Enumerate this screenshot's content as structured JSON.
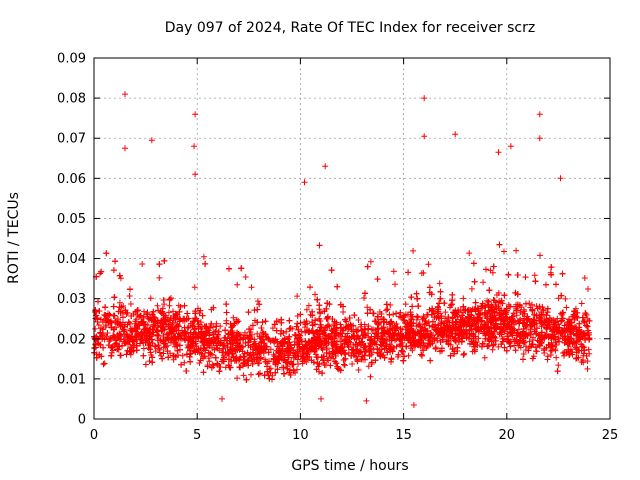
{
  "chart_data": {
    "type": "scatter",
    "title": "Day 097 of 2024, Rate Of TEC Index for receiver scrz",
    "xlabel": "GPS time / hours",
    "ylabel": "ROTI / TECUs",
    "xlim": [
      0,
      25
    ],
    "ylim": [
      0,
      0.09
    ],
    "xticks": [
      0,
      5,
      10,
      15,
      20,
      25
    ],
    "xtick_labels": [
      "0",
      "5",
      "10",
      "15",
      "20",
      "25"
    ],
    "yticks": [
      0,
      0.01,
      0.02,
      0.03,
      0.04,
      0.05,
      0.06,
      0.07,
      0.08,
      0.09
    ],
    "ytick_labels": [
      "0",
      "0.01",
      "0.02",
      "0.03",
      "0.04",
      "0.05",
      "0.06",
      "0.07",
      "0.08",
      "0.09"
    ],
    "grid": true,
    "marker": "+",
    "series": [
      {
        "name": "ROTI",
        "color": "#ff0000",
        "x_range": [
          0,
          24
        ],
        "baseline_profile": {
          "hours": [
            0,
            2,
            4,
            6,
            8,
            9.5,
            11,
            13,
            14,
            16,
            18,
            20,
            22,
            24
          ],
          "median": [
            0.021,
            0.022,
            0.021,
            0.019,
            0.017,
            0.017,
            0.02,
            0.019,
            0.021,
            0.022,
            0.023,
            0.024,
            0.022,
            0.02
          ]
        },
        "peaks": [
          {
            "x": 1.5,
            "y": 0.081
          },
          {
            "x": 1.5,
            "y": 0.0675
          },
          {
            "x": 2.8,
            "y": 0.0695
          },
          {
            "x": 4.9,
            "y": 0.076
          },
          {
            "x": 4.85,
            "y": 0.068
          },
          {
            "x": 4.9,
            "y": 0.061
          },
          {
            "x": 11.2,
            "y": 0.063
          },
          {
            "x": 10.2,
            "y": 0.059
          },
          {
            "x": 16.0,
            "y": 0.08
          },
          {
            "x": 16.0,
            "y": 0.0705
          },
          {
            "x": 17.5,
            "y": 0.071
          },
          {
            "x": 19.6,
            "y": 0.0665
          },
          {
            "x": 20.2,
            "y": 0.068
          },
          {
            "x": 21.6,
            "y": 0.076
          },
          {
            "x": 21.6,
            "y": 0.07
          },
          {
            "x": 22.6,
            "y": 0.06
          }
        ],
        "lows": [
          {
            "x": 15.5,
            "y": 0.0035
          },
          {
            "x": 6.2,
            "y": 0.005
          },
          {
            "x": 13.2,
            "y": 0.0045
          },
          {
            "x": 11.0,
            "y": 0.005
          }
        ]
      }
    ]
  }
}
